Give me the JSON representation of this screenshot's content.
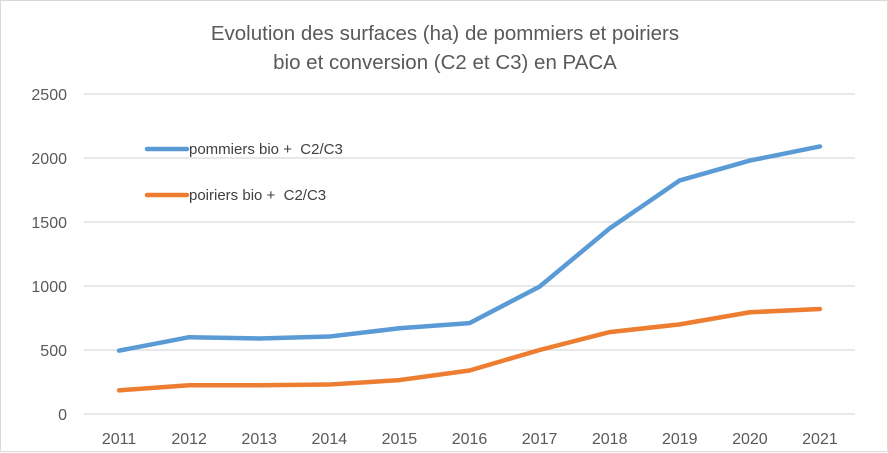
{
  "chart_data": {
    "type": "line",
    "title_lines": [
      "Evolution des surfaces (ha) de pommiers et poiriers",
      "bio et conversion (C2 et C3) en PACA"
    ],
    "title": "Evolution des surfaces (ha) de pommiers et poiriers bio et conversion (C2 et C3) en PACA",
    "xlabel": "",
    "ylabel": "",
    "categories": [
      "2011",
      "2012",
      "2013",
      "2014",
      "2015",
      "2016",
      "2017",
      "2018",
      "2019",
      "2020",
      "2021"
    ],
    "ylim": [
      0,
      2500
    ],
    "yticks": [
      0,
      500,
      1000,
      1500,
      2000,
      2500
    ],
    "grid": true,
    "legend_position": "top-left (inside plot)",
    "series": [
      {
        "name": "pommiers bio +  C2/C3",
        "color": "#5b9bd5",
        "values": [
          495,
          600,
          590,
          605,
          670,
          710,
          995,
          1450,
          1825,
          1980,
          2090
        ]
      },
      {
        "name": "poiriers bio +  C2/C3",
        "color": "#ed7d31",
        "values": [
          185,
          225,
          225,
          230,
          265,
          340,
          500,
          640,
          700,
          795,
          820
        ]
      }
    ]
  }
}
